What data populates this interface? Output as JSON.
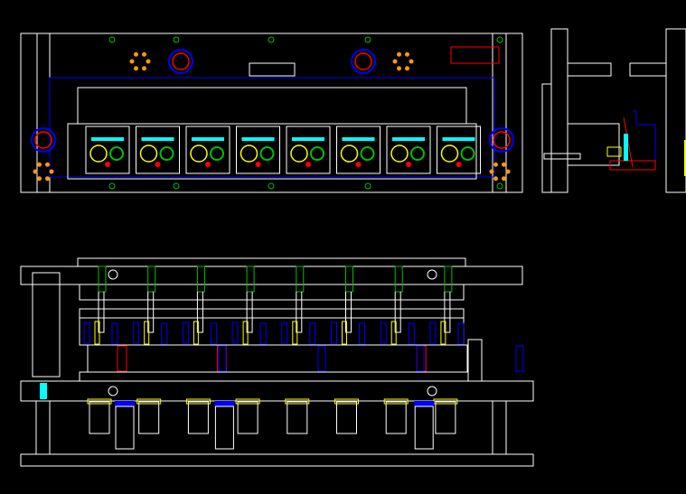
{
  "drawing": {
    "views": [
      "plan-view",
      "side-view",
      "front-elevation"
    ],
    "background_color": "#000000",
    "colors": {
      "outline": "#ffffff",
      "blue": "#0000ff",
      "red": "#ff0000",
      "yellow": "#ffff00",
      "green": "#00c000",
      "cyan": "#00ffff",
      "orange": "#ff9900"
    },
    "station_count": 8
  }
}
